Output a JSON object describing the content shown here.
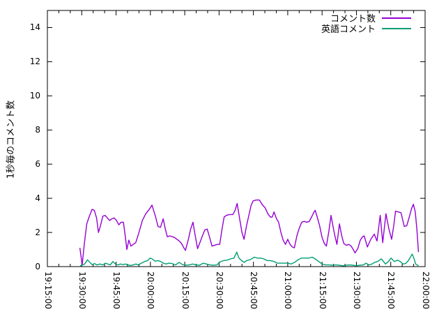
{
  "chart_data": {
    "type": "line",
    "title": "",
    "xlabel": "",
    "ylabel": "1秒毎のコメント数",
    "x_unit": "minutes since 19:15:00",
    "xlim": [
      0,
      165
    ],
    "ylim": [
      0,
      15
    ],
    "grid": false,
    "legend_position": "top-right-inside",
    "x_major_ticks": [
      0,
      15,
      30,
      45,
      60,
      75,
      90,
      105,
      120,
      135,
      150,
      165
    ],
    "x_tick_labels": [
      "19:15:00",
      "19:30:00",
      "19:45:00",
      "20:00:00",
      "20:15:00",
      "20:30:00",
      "20:45:00",
      "21:00:00",
      "21:15:00",
      "21:30:00",
      "21:45:00",
      "22:00:00"
    ],
    "x_minor_tick_step": 5,
    "y_ticks": [
      0,
      2,
      4,
      6,
      8,
      10,
      12,
      14
    ],
    "y_tick_labels": [
      "0",
      "2",
      "4",
      "6",
      "8",
      "10",
      "12",
      "14"
    ],
    "axis_color": "#000000",
    "background_color": "#ffffff",
    "series": [
      {
        "name": "コメント数",
        "color": "#9400d3",
        "points": [
          [
            14.2,
            1.1
          ],
          [
            14.8,
            0.5
          ],
          [
            15.2,
            0.1
          ],
          [
            16.2,
            1.4
          ],
          [
            17.2,
            2.5
          ],
          [
            18.2,
            2.9
          ],
          [
            19.5,
            3.35
          ],
          [
            20.5,
            3.3
          ],
          [
            21.5,
            2.85
          ],
          [
            22.3,
            2.0
          ],
          [
            23.2,
            2.4
          ],
          [
            24.2,
            2.95
          ],
          [
            25.2,
            3.0
          ],
          [
            26.2,
            2.85
          ],
          [
            27.2,
            2.7
          ],
          [
            28.2,
            2.8
          ],
          [
            29.2,
            2.85
          ],
          [
            30.2,
            2.7
          ],
          [
            31.2,
            2.45
          ],
          [
            32.2,
            2.6
          ],
          [
            33.2,
            2.6
          ],
          [
            34.0,
            1.8
          ],
          [
            34.7,
            1.0
          ],
          [
            35.6,
            1.55
          ],
          [
            36.5,
            1.2
          ],
          [
            37.5,
            1.3
          ],
          [
            38.6,
            1.4
          ],
          [
            40.0,
            2.0
          ],
          [
            41.5,
            2.7
          ],
          [
            43.0,
            3.1
          ],
          [
            44.5,
            3.35
          ],
          [
            45.7,
            3.6
          ],
          [
            46.6,
            3.2
          ],
          [
            47.3,
            2.9
          ],
          [
            48.3,
            2.35
          ],
          [
            49.4,
            2.3
          ],
          [
            50.6,
            2.8
          ],
          [
            51.5,
            2.2
          ],
          [
            52.4,
            1.75
          ],
          [
            53.5,
            1.8
          ],
          [
            54.6,
            1.75
          ],
          [
            55.6,
            1.7
          ],
          [
            56.6,
            1.6
          ],
          [
            57.6,
            1.5
          ],
          [
            58.6,
            1.35
          ],
          [
            59.6,
            1.1
          ],
          [
            60.3,
            0.95
          ],
          [
            61.6,
            1.6
          ],
          [
            62.6,
            2.2
          ],
          [
            63.6,
            2.6
          ],
          [
            64.6,
            1.8
          ],
          [
            65.6,
            1.05
          ],
          [
            66.6,
            1.4
          ],
          [
            67.7,
            1.8
          ],
          [
            68.8,
            2.15
          ],
          [
            69.8,
            2.2
          ],
          [
            70.9,
            1.7
          ],
          [
            71.9,
            1.2
          ],
          [
            73.0,
            1.25
          ],
          [
            74.2,
            1.3
          ],
          [
            75.3,
            1.3
          ],
          [
            76.3,
            2.2
          ],
          [
            77.2,
            2.9
          ],
          [
            78.2,
            3.0
          ],
          [
            79.6,
            3.05
          ],
          [
            81.0,
            3.05
          ],
          [
            82.0,
            3.3
          ],
          [
            82.9,
            3.7
          ],
          [
            84.0,
            2.8
          ],
          [
            85.0,
            2.0
          ],
          [
            85.9,
            1.6
          ],
          [
            87.0,
            2.4
          ],
          [
            88.0,
            3.0
          ],
          [
            89.0,
            3.6
          ],
          [
            89.9,
            3.85
          ],
          [
            91.2,
            3.9
          ],
          [
            92.6,
            3.9
          ],
          [
            94.0,
            3.6
          ],
          [
            95.1,
            3.45
          ],
          [
            96.3,
            3.1
          ],
          [
            97.4,
            2.9
          ],
          [
            98.2,
            2.9
          ],
          [
            99.0,
            3.2
          ],
          [
            100.1,
            2.8
          ],
          [
            101.0,
            2.6
          ],
          [
            102.0,
            2.0
          ],
          [
            103.0,
            1.55
          ],
          [
            104.0,
            1.3
          ],
          [
            105.0,
            1.6
          ],
          [
            106.0,
            1.3
          ],
          [
            107.0,
            1.15
          ],
          [
            107.9,
            1.1
          ],
          [
            109.0,
            1.8
          ],
          [
            109.9,
            2.2
          ],
          [
            111.1,
            2.6
          ],
          [
            112.2,
            2.65
          ],
          [
            113.3,
            2.6
          ],
          [
            114.4,
            2.65
          ],
          [
            115.4,
            2.9
          ],
          [
            116.3,
            3.15
          ],
          [
            117.0,
            3.3
          ],
          [
            118.1,
            2.8
          ],
          [
            118.9,
            2.4
          ],
          [
            120.0,
            1.7
          ],
          [
            121.0,
            1.35
          ],
          [
            121.9,
            1.2
          ],
          [
            123.0,
            2.1
          ],
          [
            123.9,
            3.0
          ],
          [
            125.0,
            2.2
          ],
          [
            125.6,
            1.8
          ],
          [
            126.5,
            1.3
          ],
          [
            127.6,
            2.5
          ],
          [
            128.6,
            1.8
          ],
          [
            129.5,
            1.35
          ],
          [
            130.6,
            1.25
          ],
          [
            131.7,
            1.3
          ],
          [
            132.7,
            1.2
          ],
          [
            133.6,
            1.0
          ],
          [
            134.4,
            0.8
          ],
          [
            135.6,
            1.05
          ],
          [
            136.7,
            1.55
          ],
          [
            137.7,
            1.75
          ],
          [
            138.4,
            1.8
          ],
          [
            139.8,
            1.15
          ],
          [
            141.3,
            1.6
          ],
          [
            142.8,
            1.9
          ],
          [
            144.0,
            1.5
          ],
          [
            145.4,
            3.0
          ],
          [
            146.5,
            1.4
          ],
          [
            147.9,
            3.1
          ],
          [
            149.2,
            2.2
          ],
          [
            150.4,
            1.6
          ],
          [
            151.3,
            2.4
          ],
          [
            152.1,
            3.25
          ],
          [
            153.3,
            3.2
          ],
          [
            154.5,
            3.15
          ],
          [
            155.9,
            2.35
          ],
          [
            157.0,
            2.4
          ],
          [
            158.1,
            2.9
          ],
          [
            159.1,
            3.4
          ],
          [
            159.9,
            3.65
          ],
          [
            160.7,
            3.2
          ],
          [
            161.4,
            2.2
          ],
          [
            162.1,
            0.85
          ]
        ]
      },
      {
        "name": "英語コメント",
        "color": "#009e73",
        "points": [
          [
            14.3,
            0.05
          ],
          [
            15.3,
            0.1
          ],
          [
            16.3,
            0.15
          ],
          [
            17.5,
            0.4
          ],
          [
            18.5,
            0.25
          ],
          [
            19.5,
            0.12
          ],
          [
            20.6,
            0.18
          ],
          [
            21.6,
            0.1
          ],
          [
            23.0,
            0.15
          ],
          [
            24.2,
            0.1
          ],
          [
            25.3,
            0.2
          ],
          [
            26.4,
            0.15
          ],
          [
            27.5,
            0.1
          ],
          [
            28.6,
            0.3
          ],
          [
            29.7,
            0.15
          ],
          [
            30.8,
            0.1
          ],
          [
            31.9,
            0.15
          ],
          [
            33.0,
            0.12
          ],
          [
            34.1,
            0.15
          ],
          [
            35.2,
            0.1
          ],
          [
            36.3,
            0.07
          ],
          [
            37.5,
            0.1
          ],
          [
            38.6,
            0.15
          ],
          [
            39.8,
            0.1
          ],
          [
            41.0,
            0.2
          ],
          [
            42.5,
            0.3
          ],
          [
            43.8,
            0.35
          ],
          [
            44.8,
            0.5
          ],
          [
            45.8,
            0.45
          ],
          [
            47.0,
            0.32
          ],
          [
            48.3,
            0.35
          ],
          [
            49.5,
            0.3
          ],
          [
            50.7,
            0.2
          ],
          [
            51.8,
            0.15
          ],
          [
            53.0,
            0.2
          ],
          [
            54.5,
            0.18
          ],
          [
            56.0,
            0.1
          ],
          [
            57.5,
            0.25
          ],
          [
            59.0,
            0.12
          ],
          [
            60.3,
            0.08
          ],
          [
            62.0,
            0.1
          ],
          [
            63.5,
            0.15
          ],
          [
            65.0,
            0.1
          ],
          [
            66.5,
            0.08
          ],
          [
            68.0,
            0.2
          ],
          [
            69.5,
            0.15
          ],
          [
            71.0,
            0.1
          ],
          [
            72.5,
            0.08
          ],
          [
            74.0,
            0.1
          ],
          [
            75.5,
            0.28
          ],
          [
            77.0,
            0.35
          ],
          [
            78.5,
            0.38
          ],
          [
            80.0,
            0.45
          ],
          [
            81.5,
            0.5
          ],
          [
            82.7,
            0.85
          ],
          [
            83.7,
            0.5
          ],
          [
            84.8,
            0.35
          ],
          [
            86.0,
            0.25
          ],
          [
            87.0,
            0.35
          ],
          [
            88.5,
            0.4
          ],
          [
            90.4,
            0.55
          ],
          [
            91.8,
            0.5
          ],
          [
            93.2,
            0.5
          ],
          [
            94.6,
            0.45
          ],
          [
            96.0,
            0.35
          ],
          [
            97.5,
            0.35
          ],
          [
            99.0,
            0.3
          ],
          [
            100.5,
            0.2
          ],
          [
            102.0,
            0.2
          ],
          [
            103.5,
            0.2
          ],
          [
            105.0,
            0.2
          ],
          [
            106.5,
            0.15
          ],
          [
            108.0,
            0.25
          ],
          [
            109.5,
            0.4
          ],
          [
            111.0,
            0.5
          ],
          [
            112.5,
            0.5
          ],
          [
            114.0,
            0.5
          ],
          [
            115.7,
            0.55
          ],
          [
            117.0,
            0.45
          ],
          [
            118.5,
            0.3
          ],
          [
            120.0,
            0.15
          ],
          [
            121.5,
            0.1
          ],
          [
            123.0,
            0.1
          ],
          [
            124.5,
            0.08
          ],
          [
            126.0,
            0.1
          ],
          [
            127.5,
            0.08
          ],
          [
            129.0,
            0.05
          ],
          [
            130.5,
            0.08
          ],
          [
            132.0,
            0.1
          ],
          [
            133.5,
            0.08
          ],
          [
            135.0,
            0.05
          ],
          [
            136.5,
            0.08
          ],
          [
            138.0,
            0.1
          ],
          [
            139.2,
            0.2
          ],
          [
            140.4,
            0.1
          ],
          [
            141.8,
            0.15
          ],
          [
            143.0,
            0.25
          ],
          [
            144.2,
            0.3
          ],
          [
            145.9,
            0.45
          ],
          [
            147.7,
            0.15
          ],
          [
            149.0,
            0.3
          ],
          [
            150.1,
            0.5
          ],
          [
            151.6,
            0.3
          ],
          [
            152.9,
            0.38
          ],
          [
            154.2,
            0.3
          ],
          [
            155.3,
            0.15
          ],
          [
            156.5,
            0.18
          ],
          [
            157.7,
            0.35
          ],
          [
            158.8,
            0.6
          ],
          [
            159.4,
            0.73
          ],
          [
            160.2,
            0.45
          ],
          [
            160.9,
            0.15
          ],
          [
            162.1,
            0.05
          ]
        ]
      }
    ]
  }
}
